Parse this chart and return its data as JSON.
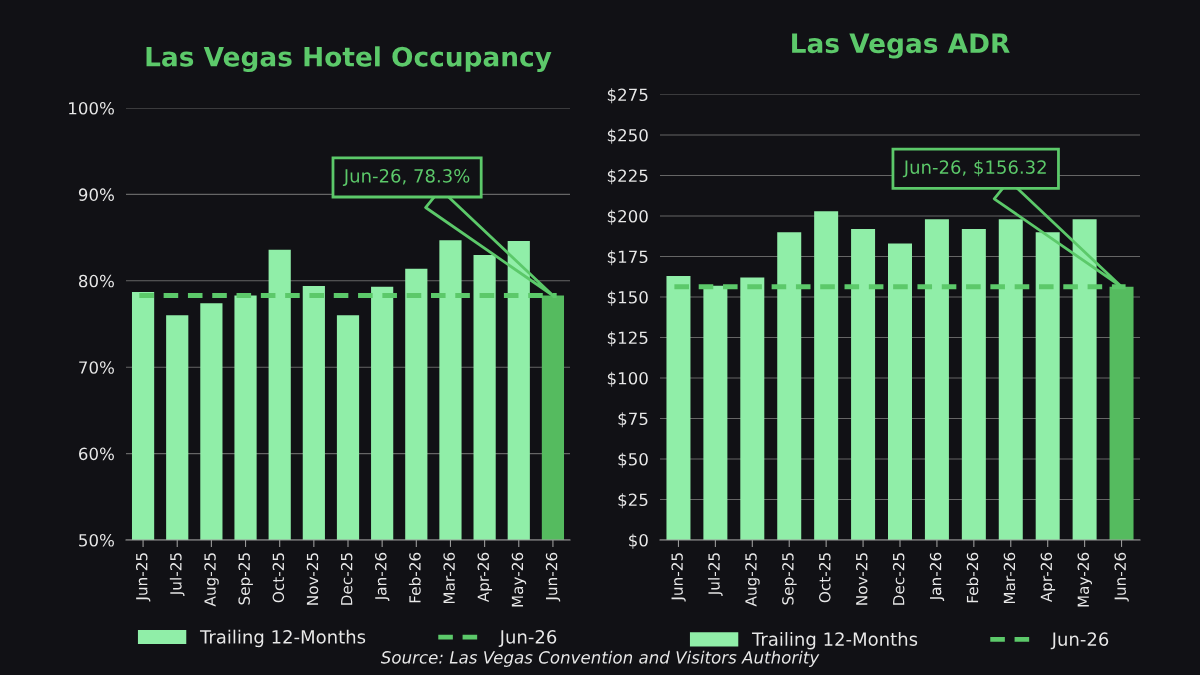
{
  "chart_data": [
    {
      "type": "bar",
      "title": "Las Vegas Hotel Occupancy",
      "categories": [
        "Jun-25",
        "Jul-25",
        "Aug-25",
        "Sep-25",
        "Oct-25",
        "Nov-25",
        "Dec-25",
        "Jan-26",
        "Feb-26",
        "Mar-26",
        "Apr-26",
        "May-26",
        "Jun-26"
      ],
      "series": [
        {
          "name": "Trailing 12-Months",
          "values": [
            78.7,
            76.0,
            77.4,
            78.3,
            83.6,
            79.4,
            76.0,
            79.3,
            81.4,
            84.7,
            83.0,
            84.6,
            78.3
          ],
          "colors": [
            "#90eea8",
            "#90eea8",
            "#90eea8",
            "#90eea8",
            "#90eea8",
            "#90eea8",
            "#90eea8",
            "#90eea8",
            "#90eea8",
            "#90eea8",
            "#90eea8",
            "#90eea8",
            "#55bb5f"
          ]
        }
      ],
      "ylim": [
        50,
        100
      ],
      "yticks": [
        {
          "value": 50,
          "label": "50%"
        },
        {
          "value": 60,
          "label": "60%"
        },
        {
          "value": 70,
          "label": "70%"
        },
        {
          "value": 80,
          "label": "80%"
        },
        {
          "value": 90,
          "label": "90%"
        },
        {
          "value": 100,
          "label": "100%"
        }
      ],
      "ref_lines": [
        {
          "axis": "y",
          "value": 78.3,
          "label": "Jun-26",
          "color": "#5cc96a",
          "line_style": "dashed"
        }
      ],
      "annotations": [
        "Jun-26, 78.3%"
      ],
      "grid": "y",
      "legend": "bottom"
    },
    {
      "type": "bar",
      "title": "Las Vegas ADR",
      "categories": [
        "Jun-25",
        "Jul-25",
        "Aug-25",
        "Sep-25",
        "Oct-25",
        "Nov-25",
        "Dec-25",
        "Jan-26",
        "Feb-26",
        "Mar-26",
        "Apr-26",
        "May-26",
        "Jun-26"
      ],
      "series": [
        {
          "name": "Trailing 12-Months",
          "values": [
            163,
            157,
            162,
            190,
            203,
            192,
            183,
            198,
            192,
            198,
            190,
            198,
            156.32
          ],
          "colors": [
            "#90eea8",
            "#90eea8",
            "#90eea8",
            "#90eea8",
            "#90eea8",
            "#90eea8",
            "#90eea8",
            "#90eea8",
            "#90eea8",
            "#90eea8",
            "#90eea8",
            "#90eea8",
            "#55bb5f"
          ]
        }
      ],
      "ylim": [
        0,
        275
      ],
      "yticks": [
        {
          "value": 0,
          "label": "$0"
        },
        {
          "value": 25,
          "label": "$25"
        },
        {
          "value": 50,
          "label": "$50"
        },
        {
          "value": 75,
          "label": "$75"
        },
        {
          "value": 100,
          "label": "$100"
        },
        {
          "value": 125,
          "label": "$125"
        },
        {
          "value": 150,
          "label": "$150"
        },
        {
          "value": 175,
          "label": "$175"
        },
        {
          "value": 200,
          "label": "$200"
        },
        {
          "value": 225,
          "label": "$225"
        },
        {
          "value": 250,
          "label": "$250"
        },
        {
          "value": 275,
          "label": "$275"
        }
      ],
      "ref_lines": [
        {
          "axis": "y",
          "value": 156.32,
          "label": "Jun-26",
          "color": "#5cc96a",
          "line_style": "dashed"
        }
      ],
      "annotations": [
        "Jun-26, $156.32",
        "Source: Las Vegas Convention and Visitors Authority"
      ],
      "grid": "y",
      "legend": "bottom"
    }
  ]
}
